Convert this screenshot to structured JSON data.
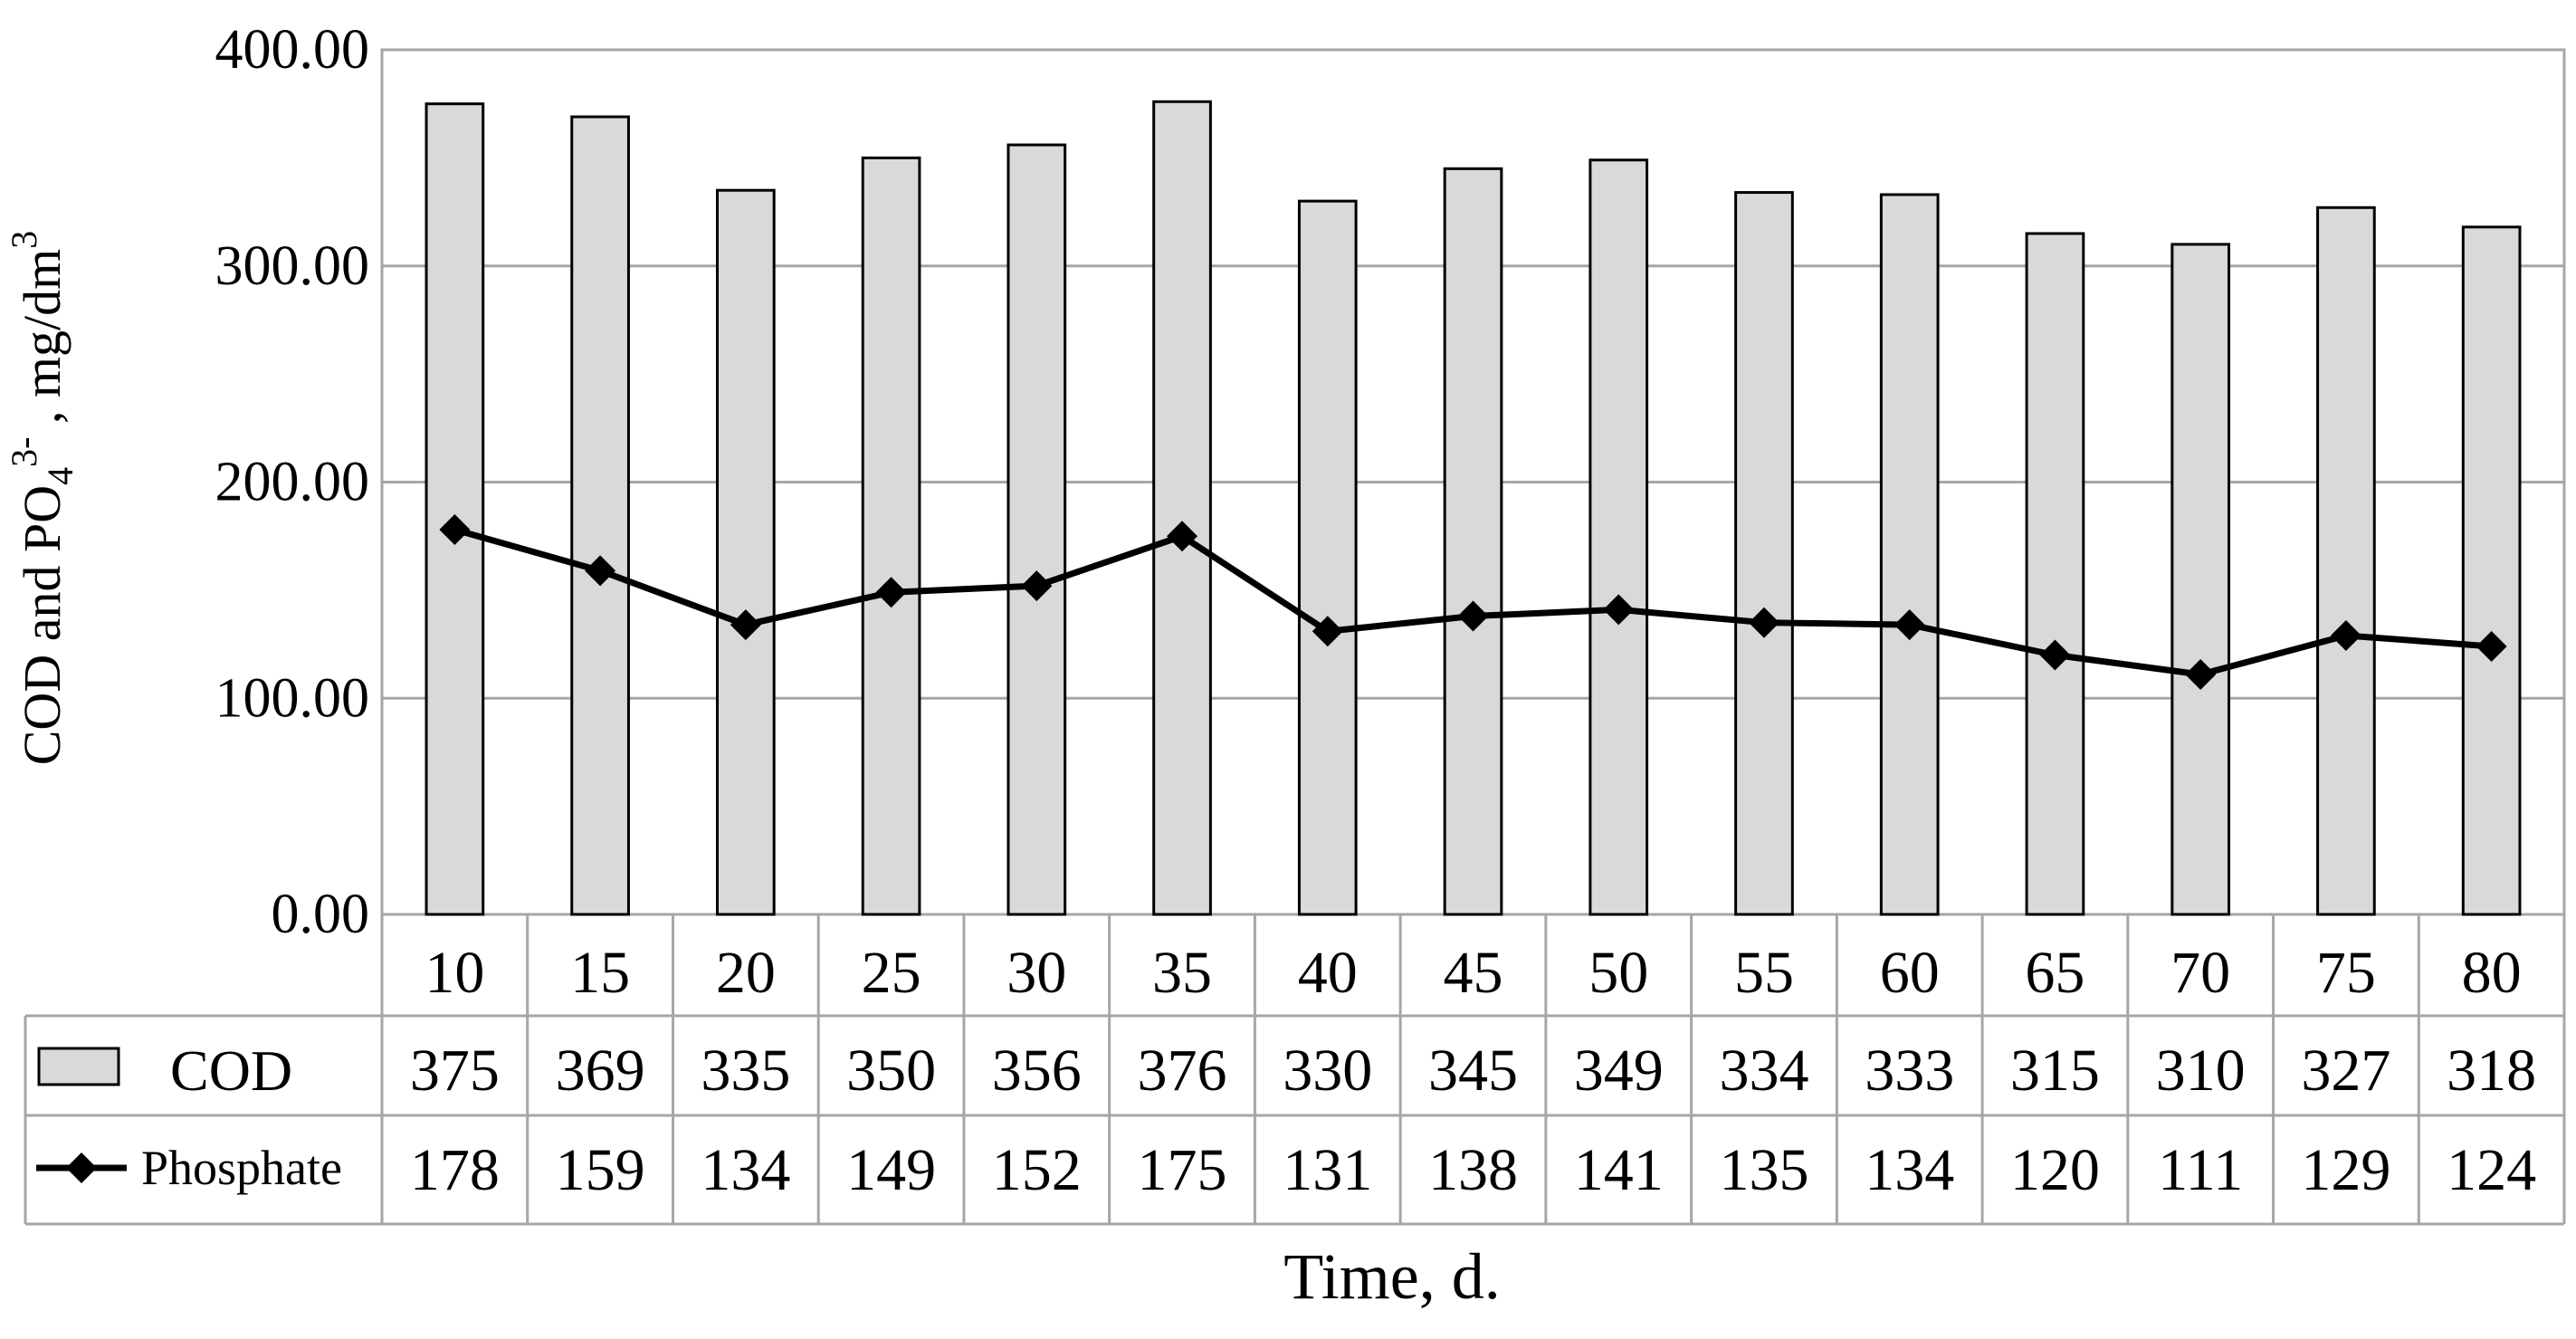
{
  "chart_data": {
    "type": "bar",
    "categories": [
      "10",
      "15",
      "20",
      "25",
      "30",
      "35",
      "40",
      "45",
      "50",
      "55",
      "60",
      "65",
      "70",
      "75",
      "80"
    ],
    "series": [
      {
        "name": "COD",
        "type": "bar",
        "values": [
          375,
          369,
          335,
          350,
          356,
          376,
          330,
          345,
          349,
          334,
          333,
          315,
          310,
          327,
          318
        ],
        "color": "#d9d9d9"
      },
      {
        "name": "Phosphate",
        "type": "line",
        "marker": "diamond",
        "values": [
          178,
          159,
          134,
          149,
          152,
          175,
          131,
          138,
          141,
          135,
          134,
          120,
          111,
          129,
          124
        ],
        "color": "#000000"
      }
    ],
    "yticks": [
      "0.00",
      "100.00",
      "200.00",
      "300.00",
      "400.00"
    ],
    "ylim": [
      0,
      400
    ],
    "grid": true,
    "data_table": true,
    "xlabel": "Time, d.",
    "ylabel": {
      "prefix": "COD and PO",
      "sub": "4",
      "sup": "3-",
      "middle": " , mg/dm",
      "sup2": "3"
    }
  }
}
